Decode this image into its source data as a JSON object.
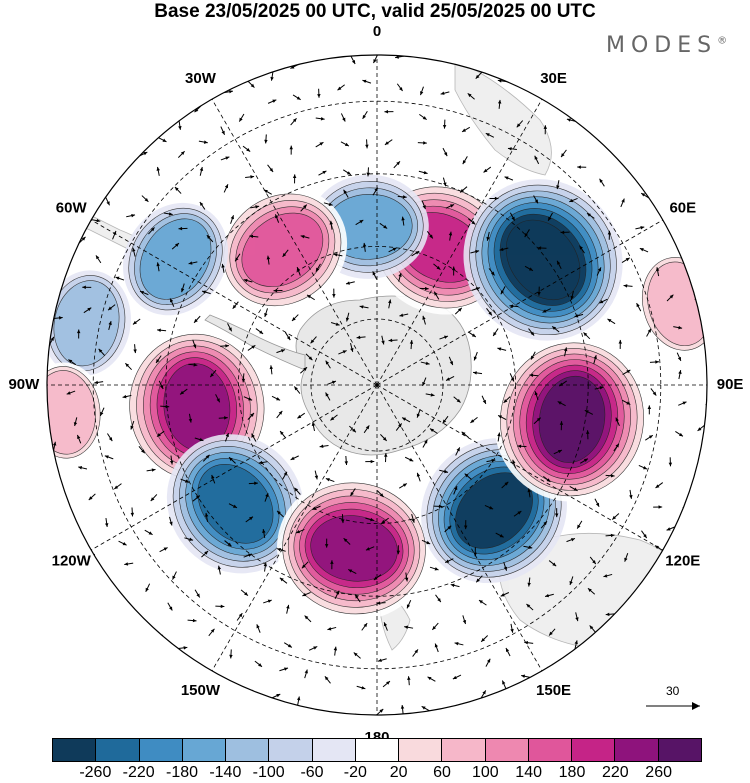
{
  "title": "Base 23/05/2025 00 UTC, valid 25/05/2025 00 UTC",
  "brand": "MODES",
  "brand_mark": "®",
  "longitude_labels": [
    {
      "text": "0",
      "lon": 0
    },
    {
      "text": "30E",
      "lon": 30
    },
    {
      "text": "60E",
      "lon": 60
    },
    {
      "text": "90E",
      "lon": 90
    },
    {
      "text": "120E",
      "lon": 120
    },
    {
      "text": "150E",
      "lon": 150
    },
    {
      "text": "180",
      "lon": 180
    },
    {
      "text": "150W",
      "lon": -150
    },
    {
      "text": "120W",
      "lon": -120
    },
    {
      "text": "90W",
      "lon": -90
    },
    {
      "text": "60W",
      "lon": -60
    },
    {
      "text": "30W",
      "lon": -30
    }
  ],
  "projection": "south polar stereographic",
  "anomaly_centers": [
    {
      "lon": 25,
      "colat": 0.46,
      "value": 200
    },
    {
      "lon": -3,
      "colat": 0.48,
      "value": -130
    },
    {
      "lon": -35,
      "colat": 0.5,
      "value": 170
    },
    {
      "lon": -58,
      "colat": 0.72,
      "value": -120
    },
    {
      "lon": -78,
      "colat": 0.9,
      "value": -90
    },
    {
      "lon": -97,
      "colat": 0.55,
      "value": 240
    },
    {
      "lon": -130,
      "colat": 0.56,
      "value": -200
    },
    {
      "lon": -172,
      "colat": 0.5,
      "value": 230
    },
    {
      "lon": 137,
      "colat": 0.52,
      "value": -220
    },
    {
      "lon": 100,
      "colat": 0.6,
      "value": 260
    },
    {
      "lon": 53,
      "colat": 0.63,
      "value": -260
    },
    {
      "lon": 75,
      "colat": 0.95,
      "value": 80
    },
    {
      "lon": -95,
      "colat": 0.95,
      "value": 70
    }
  ],
  "reference_vector": {
    "label": "30"
  },
  "colorbar": {
    "ticks": [
      "-260",
      "-220",
      "-180",
      "-140",
      "-100",
      "-60",
      "-20",
      "20",
      "60",
      "100",
      "140",
      "180",
      "220",
      "260"
    ],
    "colors": [
      "#0f3a5a",
      "#1f6a9b",
      "#3f8cc2",
      "#67a7d4",
      "#9ebfe0",
      "#c4d1ea",
      "#e4e6f4",
      "#ffffff",
      "#f9dadd",
      "#f6b7c9",
      "#ee88b0",
      "#e0569b",
      "#c52487",
      "#8e137c",
      "#571466"
    ]
  }
}
